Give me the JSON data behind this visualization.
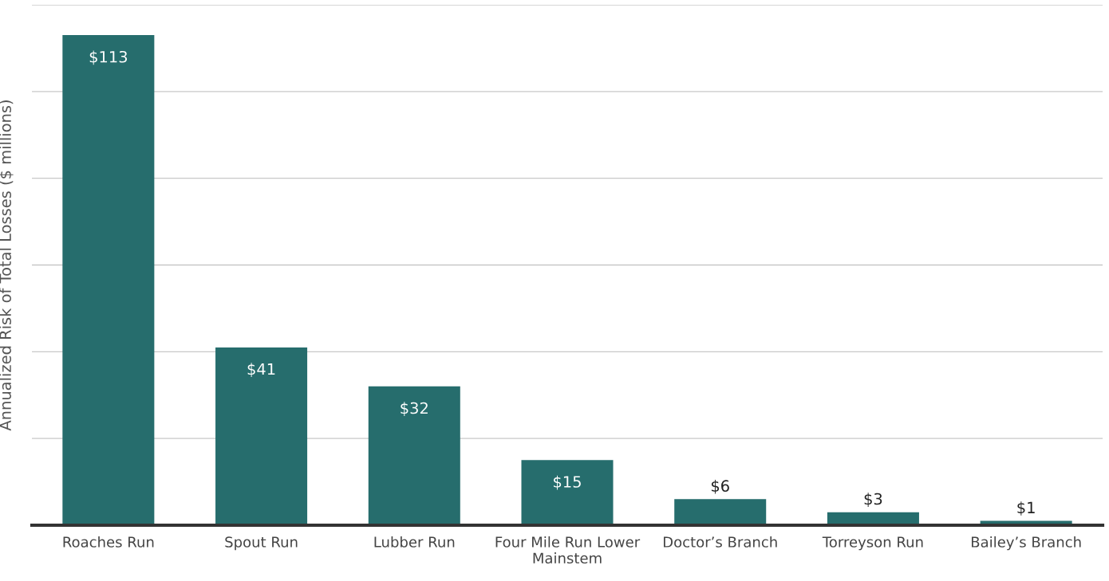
{
  "chart_data": {
    "type": "bar",
    "ylabel": "Annualized Risk of Total Losses ($ millions)",
    "categories": [
      "Roaches Run",
      "Spout Run",
      "Lubber Run",
      "Four Mile Run Lower Mainstem",
      "Doctor’s Branch",
      "Torreyson Run",
      "Bailey’s Branch"
    ],
    "values": [
      113,
      41,
      32,
      15,
      6,
      3,
      1
    ],
    "value_labels": [
      "$113",
      "$41",
      "$32",
      "$15",
      "$6",
      "$3",
      "$1"
    ],
    "color": "#266d6d",
    "ylim": [
      0,
      120
    ],
    "yticks": [
      {
        "value": 0,
        "label": null
      },
      {
        "value": 20,
        "label": null
      },
      {
        "value": 40,
        "label": null
      },
      {
        "value": 60,
        "label": null
      },
      {
        "value": 80,
        "label": null
      },
      {
        "value": 100,
        "label": null
      },
      {
        "value": 120,
        "label": null
      }
    ],
    "tick_labels": "x",
    "grid": "y",
    "legend": false
  }
}
